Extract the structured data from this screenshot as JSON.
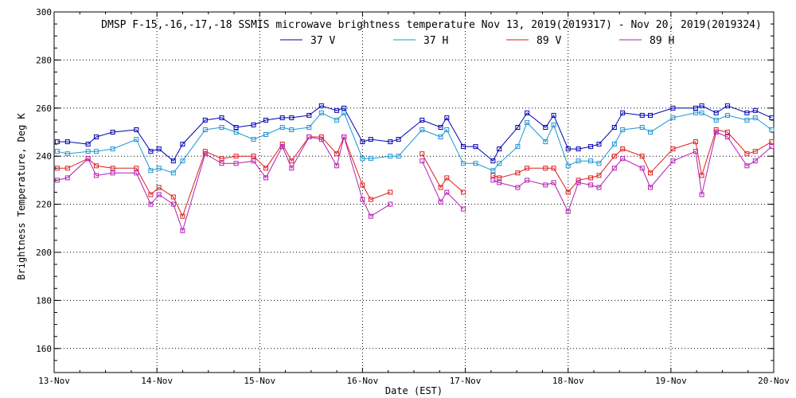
{
  "chart_data": {
    "type": "line",
    "title": "DMSP F-15,-16,-17,-18 SSMIS microwave brightness temperature Nov 13, 2019(2019317) - Nov 20, 2019(2019324)",
    "xlabel": "Date (EST)",
    "ylabel": "Brightness Temperature, Deg K",
    "xlim": [
      0,
      7
    ],
    "ylim": [
      150,
      300
    ],
    "x_ticks": [
      0,
      1,
      2,
      3,
      4,
      5,
      6,
      7
    ],
    "x_tick_labels": [
      "13-Nov",
      "14-Nov",
      "15-Nov",
      "16-Nov",
      "17-Nov",
      "18-Nov",
      "19-Nov",
      "20-Nov"
    ],
    "y_ticks": [
      160,
      180,
      200,
      220,
      240,
      260,
      280,
      300
    ],
    "y_tick_labels": [
      "160",
      "180",
      "200",
      "220",
      "240",
      "260",
      "280",
      "300"
    ],
    "grid": true,
    "legend_position": "top-center",
    "series": [
      {
        "name": "37 V",
        "color": "#0000b4",
        "points": [
          [
            0.03,
            246
          ],
          [
            0.13,
            246
          ],
          [
            0.33,
            245
          ],
          [
            0.41,
            248
          ],
          [
            0.57,
            250
          ],
          [
            0.8,
            251
          ],
          [
            0.94,
            242
          ],
          [
            1.02,
            243
          ],
          [
            1.16,
            238
          ],
          [
            1.25,
            245
          ],
          [
            1.47,
            255
          ],
          [
            1.63,
            256
          ],
          [
            1.77,
            252
          ],
          [
            1.94,
            253
          ],
          [
            2.06,
            255
          ],
          [
            2.22,
            256
          ],
          [
            2.31,
            256
          ],
          [
            2.48,
            257
          ],
          [
            2.6,
            261
          ],
          [
            2.75,
            259
          ],
          [
            2.82,
            260
          ],
          [
            3.0,
            246
          ],
          [
            3.08,
            247
          ],
          [
            3.27,
            246
          ],
          [
            3.35,
            247
          ],
          [
            3.58,
            255
          ],
          [
            3.76,
            252
          ],
          [
            3.82,
            256
          ],
          [
            3.98,
            244
          ],
          [
            4.1,
            244
          ],
          [
            4.27,
            238
          ],
          [
            4.33,
            243
          ],
          [
            4.51,
            252
          ],
          [
            4.6,
            258
          ],
          [
            4.78,
            252
          ],
          [
            4.86,
            257
          ],
          [
            5.0,
            243
          ],
          [
            5.1,
            243
          ],
          [
            5.22,
            244
          ],
          [
            5.3,
            245
          ],
          [
            5.45,
            252
          ],
          [
            5.53,
            258
          ],
          [
            5.72,
            257
          ],
          [
            5.8,
            257
          ],
          [
            6.02,
            260
          ],
          [
            6.24,
            260
          ],
          [
            6.3,
            261
          ],
          [
            6.44,
            258
          ],
          [
            6.55,
            261
          ],
          [
            6.74,
            258
          ],
          [
            6.82,
            259
          ],
          [
            6.98,
            256
          ]
        ]
      },
      {
        "name": "37 H",
        "color": "#1e96d2",
        "points": [
          [
            0.03,
            242
          ],
          [
            0.13,
            241
          ],
          [
            0.33,
            242
          ],
          [
            0.41,
            242
          ],
          [
            0.57,
            243
          ],
          [
            0.8,
            247
          ],
          [
            0.94,
            234
          ],
          [
            1.02,
            235
          ],
          [
            1.16,
            233
          ],
          [
            1.25,
            238
          ],
          [
            1.47,
            251
          ],
          [
            1.63,
            252
          ],
          [
            1.77,
            250
          ],
          [
            1.94,
            247
          ],
          [
            2.06,
            249
          ],
          [
            2.22,
            252
          ],
          [
            2.31,
            251
          ],
          [
            2.48,
            252
          ],
          [
            2.6,
            258
          ],
          [
            2.75,
            255
          ],
          [
            2.82,
            258
          ],
          [
            3.0,
            239
          ],
          [
            3.08,
            239
          ],
          [
            3.27,
            240
          ],
          [
            3.35,
            240
          ],
          [
            3.58,
            251
          ],
          [
            3.76,
            248
          ],
          [
            3.82,
            251
          ],
          [
            3.98,
            237
          ],
          [
            4.1,
            237
          ],
          [
            4.27,
            234
          ],
          [
            4.33,
            237
          ],
          [
            4.51,
            244
          ],
          [
            4.6,
            254
          ],
          [
            4.78,
            246
          ],
          [
            4.86,
            253
          ],
          [
            5.0,
            236
          ],
          [
            5.1,
            238
          ],
          [
            5.22,
            238
          ],
          [
            5.3,
            237
          ],
          [
            5.45,
            245
          ],
          [
            5.53,
            251
          ],
          [
            5.72,
            252
          ],
          [
            5.8,
            250
          ],
          [
            6.02,
            256
          ],
          [
            6.24,
            258
          ],
          [
            6.3,
            258
          ],
          [
            6.44,
            255
          ],
          [
            6.55,
            257
          ],
          [
            6.74,
            255
          ],
          [
            6.82,
            256
          ],
          [
            6.98,
            251
          ]
        ]
      },
      {
        "name": "89 V",
        "color": "#dc1e1e",
        "points": [
          [
            0.03,
            235
          ],
          [
            0.13,
            235
          ],
          [
            0.33,
            239
          ],
          [
            0.41,
            236
          ],
          [
            0.57,
            235
          ],
          [
            0.8,
            235
          ],
          [
            0.94,
            224
          ],
          [
            1.02,
            227
          ],
          [
            1.16,
            223
          ],
          [
            1.25,
            215
          ],
          [
            1.47,
            242
          ],
          [
            1.63,
            239
          ],
          [
            1.77,
            240
          ],
          [
            1.94,
            240
          ],
          [
            2.06,
            235
          ],
          [
            2.22,
            245
          ],
          [
            2.31,
            238
          ],
          [
            2.48,
            248
          ],
          [
            2.6,
            248
          ],
          [
            2.75,
            241
          ],
          [
            2.82,
            248
          ],
          [
            3.0,
            228
          ],
          [
            3.08,
            222
          ],
          [
            3.27,
            225
          ],
          [
            null,
            null
          ],
          [
            3.58,
            241
          ],
          [
            3.76,
            227
          ],
          [
            3.82,
            231
          ],
          [
            3.98,
            225
          ],
          [
            null,
            null
          ],
          [
            4.27,
            232
          ],
          [
            4.33,
            231
          ],
          [
            4.51,
            233
          ],
          [
            4.6,
            235
          ],
          [
            4.78,
            235
          ],
          [
            4.86,
            235
          ],
          [
            5.0,
            225
          ],
          [
            5.1,
            230
          ],
          [
            5.22,
            231
          ],
          [
            5.3,
            232
          ],
          [
            5.45,
            240
          ],
          [
            5.53,
            243
          ],
          [
            5.72,
            240
          ],
          [
            5.8,
            233
          ],
          [
            6.02,
            243
          ],
          [
            6.24,
            246
          ],
          [
            6.3,
            232
          ],
          [
            6.44,
            251
          ],
          [
            6.55,
            250
          ],
          [
            6.74,
            241
          ],
          [
            6.82,
            242
          ],
          [
            6.98,
            246
          ]
        ]
      },
      {
        "name": "89 H",
        "color": "#b41eb4",
        "points": [
          [
            0.03,
            230
          ],
          [
            0.13,
            231
          ],
          [
            0.33,
            239
          ],
          [
            0.41,
            232
          ],
          [
            0.57,
            233
          ],
          [
            0.8,
            233
          ],
          [
            0.94,
            220
          ],
          [
            1.02,
            224
          ],
          [
            1.16,
            220
          ],
          [
            1.25,
            209
          ],
          [
            1.47,
            241
          ],
          [
            1.63,
            237
          ],
          [
            1.77,
            237
          ],
          [
            1.94,
            238
          ],
          [
            2.06,
            231
          ],
          [
            2.22,
            244
          ],
          [
            2.31,
            235
          ],
          [
            2.48,
            248
          ],
          [
            2.6,
            247
          ],
          [
            2.75,
            236
          ],
          [
            2.82,
            248
          ],
          [
            3.0,
            222
          ],
          [
            3.08,
            215
          ],
          [
            3.27,
            220
          ],
          [
            null,
            null
          ],
          [
            3.58,
            238
          ],
          [
            3.76,
            221
          ],
          [
            3.82,
            225
          ],
          [
            3.98,
            218
          ],
          [
            null,
            null
          ],
          [
            4.27,
            230
          ],
          [
            4.33,
            229
          ],
          [
            4.51,
            227
          ],
          [
            4.6,
            230
          ],
          [
            4.78,
            228
          ],
          [
            4.86,
            229
          ],
          [
            5.0,
            217
          ],
          [
            5.1,
            229
          ],
          [
            5.22,
            228
          ],
          [
            5.3,
            227
          ],
          [
            5.45,
            235
          ],
          [
            5.53,
            239
          ],
          [
            5.72,
            235
          ],
          [
            5.8,
            227
          ],
          [
            6.02,
            238
          ],
          [
            6.24,
            242
          ],
          [
            6.3,
            224
          ],
          [
            6.44,
            250
          ],
          [
            6.55,
            248
          ],
          [
            6.74,
            236
          ],
          [
            6.82,
            238
          ],
          [
            6.98,
            244
          ]
        ]
      }
    ]
  }
}
